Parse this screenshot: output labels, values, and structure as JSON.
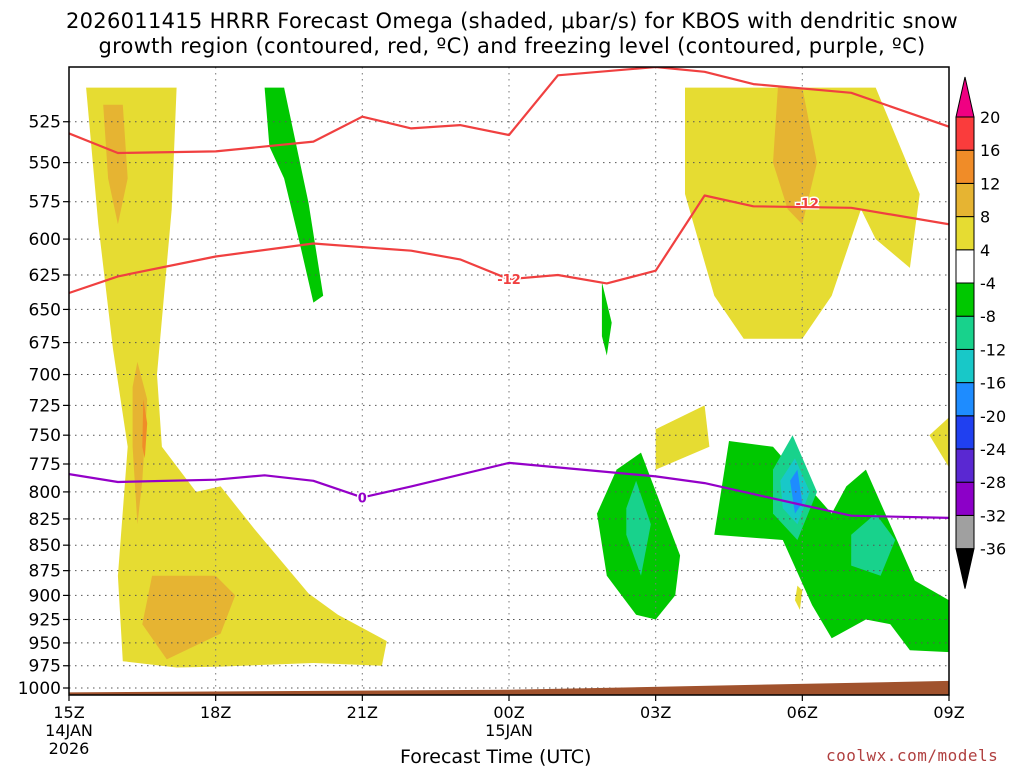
{
  "title_line1": "2026011415 HRRR Forecast Omega (shaded, μbar/s) for KBOS with dendritic snow",
  "title_line2": "growth region (contoured, red, ºC) and freezing level (contoured, purple, ºC)",
  "xaxis_label": "Forecast Time (UTC)",
  "credit": "coolwx.com/models",
  "chart_data": {
    "type": "time-height cross section",
    "model": "HRRR",
    "station": "KBOS",
    "init": "2026011415",
    "y_levels_mb": [
      525,
      550,
      575,
      600,
      625,
      650,
      675,
      700,
      725,
      750,
      775,
      800,
      825,
      850,
      875,
      900,
      925,
      950,
      975,
      1000
    ],
    "x_ticks": [
      {
        "h": 0,
        "label": "15Z",
        "sub1": "14JAN",
        "sub2": "2026"
      },
      {
        "h": 3,
        "label": "18Z",
        "sub1": "",
        "sub2": ""
      },
      {
        "h": 6,
        "label": "21Z",
        "sub1": "",
        "sub2": ""
      },
      {
        "h": 9,
        "label": "00Z",
        "sub1": "15JAN",
        "sub2": ""
      },
      {
        "h": 12,
        "label": "03Z",
        "sub1": "",
        "sub2": ""
      },
      {
        "h": 15,
        "label": "06Z",
        "sub1": "",
        "sub2": ""
      },
      {
        "h": 18,
        "label": "09Z",
        "sub1": "",
        "sub2": ""
      }
    ],
    "x_range_hours": [
      0,
      18
    ],
    "colorbar": {
      "colors": [
        "#000000",
        "#a0a0a0",
        "#8c00c8",
        "#5a28d2",
        "#2040f0",
        "#1e8cff",
        "#18c8c8",
        "#18d28c",
        "#00c800",
        "#ffffff",
        "#e6dc32",
        "#e6b432",
        "#f08c28",
        "#fa3c3c",
        "#f00082"
      ],
      "labels": [
        "-36",
        "-32",
        "-28",
        "-24",
        "-20",
        "-16",
        "-12",
        "-8",
        "-4",
        "4",
        "8",
        "12",
        "16",
        "20"
      ]
    },
    "contours": [
      {
        "name": "-12C upper",
        "color": "#f04040",
        "label": "-12",
        "label_at": {
          "h": 15.1,
          "p": 576
        },
        "points": [
          [
            0,
            532
          ],
          [
            1,
            544
          ],
          [
            3,
            543
          ],
          [
            5,
            537
          ],
          [
            6,
            522
          ],
          [
            7,
            529
          ],
          [
            8,
            527
          ],
          [
            9,
            533
          ],
          [
            10,
            498
          ],
          [
            12,
            490
          ],
          [
            13,
            496
          ],
          [
            14,
            503
          ],
          [
            16,
            508
          ],
          [
            18,
            528
          ]
        ]
      },
      {
        "name": "-12C lower",
        "color": "#f04040",
        "label": "-12",
        "label_at": {
          "h": 9.0,
          "p": 628
        },
        "points": [
          [
            0,
            638
          ],
          [
            1,
            626
          ],
          [
            3,
            612
          ],
          [
            5,
            603
          ],
          [
            7,
            608
          ],
          [
            8,
            614
          ],
          [
            9,
            628
          ],
          [
            10,
            625
          ],
          [
            11,
            631
          ],
          [
            12,
            622
          ],
          [
            13,
            571
          ],
          [
            14,
            578
          ],
          [
            16,
            579
          ],
          [
            18,
            590
          ]
        ]
      },
      {
        "name": "0C freezing level",
        "color": "#9400c8",
        "label": "0",
        "label_at": {
          "h": 6.0,
          "p": 805
        },
        "points": [
          [
            0,
            784
          ],
          [
            1,
            791
          ],
          [
            3,
            789
          ],
          [
            4,
            785
          ],
          [
            5,
            790
          ],
          [
            6,
            805
          ],
          [
            7,
            795
          ],
          [
            9,
            774
          ],
          [
            12,
            786
          ],
          [
            13,
            792
          ],
          [
            15,
            812
          ],
          [
            16,
            822
          ],
          [
            18,
            824
          ]
        ]
      }
    ],
    "omega_regions": [
      {
        "value": 4,
        "color": "#e6dc32",
        "points": [
          [
            0.35,
            505
          ],
          [
            2.2,
            505
          ],
          [
            2.1,
            580
          ],
          [
            1.8,
            700
          ],
          [
            1.9,
            760
          ],
          [
            2.6,
            800
          ],
          [
            3.1,
            795
          ],
          [
            3.8,
            835
          ],
          [
            4.9,
            898
          ],
          [
            5.5,
            920
          ],
          [
            6.5,
            948
          ],
          [
            6.4,
            975
          ],
          [
            5.0,
            972
          ],
          [
            3.1,
            976
          ],
          [
            2.2,
            977
          ],
          [
            1.1,
            970
          ],
          [
            1.0,
            880
          ],
          [
            1.2,
            760
          ],
          [
            0.9,
            680
          ],
          [
            0.6,
            590
          ]
        ]
      },
      {
        "value": 8,
        "color": "#e6b432",
        "points": [
          [
            0.7,
            515
          ],
          [
            1.1,
            515
          ],
          [
            1.2,
            560
          ],
          [
            1.0,
            590
          ],
          [
            0.8,
            560
          ]
        ]
      },
      {
        "value": 8,
        "color": "#e6b432",
        "points": [
          [
            1.4,
            690
          ],
          [
            1.6,
            720
          ],
          [
            1.5,
            790
          ],
          [
            1.4,
            830
          ],
          [
            1.3,
            760
          ],
          [
            1.3,
            710
          ]
        ]
      },
      {
        "value": 8,
        "color": "#e6b432",
        "points": [
          [
            1.7,
            880
          ],
          [
            3.0,
            880
          ],
          [
            3.4,
            900
          ],
          [
            3.1,
            940
          ],
          [
            2.0,
            968
          ],
          [
            1.5,
            930
          ]
        ]
      },
      {
        "value": 12,
        "color": "#f08c28",
        "points": [
          [
            1.52,
            720
          ],
          [
            1.6,
            740
          ],
          [
            1.55,
            770
          ],
          [
            1.5,
            760
          ]
        ]
      },
      {
        "value": 4,
        "color": "#e6dc32",
        "points": [
          [
            12.6,
            505
          ],
          [
            16.5,
            505
          ],
          [
            17.4,
            570
          ],
          [
            17.2,
            620
          ],
          [
            16.5,
            600
          ],
          [
            16.2,
            580
          ],
          [
            15.6,
            640
          ],
          [
            15.0,
            672
          ],
          [
            13.8,
            672
          ],
          [
            13.2,
            640
          ],
          [
            12.6,
            570
          ]
        ]
      },
      {
        "value": 8,
        "color": "#e6b432",
        "points": [
          [
            14.5,
            505
          ],
          [
            15.0,
            505
          ],
          [
            15.3,
            550
          ],
          [
            15.0,
            590
          ],
          [
            14.7,
            580
          ],
          [
            14.4,
            550
          ]
        ]
      },
      {
        "value": 4,
        "color": "#e6dc32",
        "points": [
          [
            12.0,
            745
          ],
          [
            13.0,
            725
          ],
          [
            13.1,
            760
          ],
          [
            12.0,
            780
          ]
        ]
      },
      {
        "value": 4,
        "color": "#e6dc32",
        "points": [
          [
            17.6,
            750
          ],
          [
            18.0,
            735
          ],
          [
            18.0,
            778
          ]
        ]
      },
      {
        "value": 4,
        "color": "#e6dc32",
        "points": [
          [
            14.9,
            890
          ],
          [
            15.0,
            895
          ],
          [
            14.95,
            915
          ],
          [
            14.85,
            905
          ]
        ]
      },
      {
        "value": -4,
        "color": "#00c800",
        "points": [
          [
            4.0,
            505
          ],
          [
            4.4,
            505
          ],
          [
            4.9,
            576
          ],
          [
            5.2,
            640
          ],
          [
            5.0,
            645
          ],
          [
            4.7,
            600
          ],
          [
            4.4,
            560
          ],
          [
            4.1,
            540
          ]
        ]
      },
      {
        "value": -4,
        "color": "#00c800",
        "points": [
          [
            10.9,
            630
          ],
          [
            11.1,
            660
          ],
          [
            11.0,
            685
          ],
          [
            10.9,
            670
          ]
        ]
      },
      {
        "value": -4,
        "color": "#00c800",
        "points": [
          [
            10.8,
            820
          ],
          [
            11.2,
            780
          ],
          [
            11.7,
            765
          ],
          [
            12.5,
            860
          ],
          [
            12.4,
            900
          ],
          [
            12.0,
            925
          ],
          [
            11.6,
            920
          ],
          [
            11.0,
            880
          ]
        ]
      },
      {
        "value": -4,
        "color": "#00c800",
        "points": [
          [
            13.2,
            840
          ],
          [
            13.5,
            755
          ],
          [
            14.4,
            760
          ],
          [
            15.6,
            820
          ],
          [
            15.9,
            795
          ],
          [
            16.3,
            780
          ],
          [
            17.3,
            885
          ],
          [
            18.0,
            905
          ],
          [
            18.0,
            960
          ],
          [
            17.2,
            958
          ],
          [
            16.8,
            930
          ],
          [
            16.3,
            925
          ],
          [
            15.6,
            945
          ],
          [
            15.2,
            910
          ],
          [
            14.6,
            845
          ]
        ]
      },
      {
        "value": -8,
        "color": "#18d28c",
        "points": [
          [
            11.4,
            815
          ],
          [
            11.6,
            790
          ],
          [
            11.9,
            830
          ],
          [
            11.7,
            880
          ],
          [
            11.4,
            840
          ]
        ]
      },
      {
        "value": -8,
        "color": "#18d28c",
        "points": [
          [
            14.4,
            780
          ],
          [
            14.8,
            750
          ],
          [
            15.3,
            800
          ],
          [
            14.9,
            845
          ],
          [
            14.4,
            820
          ]
        ]
      },
      {
        "value": -8,
        "color": "#18d28c",
        "points": [
          [
            16.0,
            840
          ],
          [
            16.5,
            820
          ],
          [
            16.9,
            845
          ],
          [
            16.6,
            880
          ],
          [
            16.0,
            870
          ]
        ]
      },
      {
        "value": -12,
        "color": "#18c8c8",
        "points": [
          [
            14.55,
            790
          ],
          [
            14.85,
            770
          ],
          [
            15.15,
            800
          ],
          [
            14.9,
            830
          ],
          [
            14.6,
            815
          ]
        ]
      },
      {
        "value": -16,
        "color": "#1e8cff",
        "points": [
          [
            14.75,
            790
          ],
          [
            14.9,
            780
          ],
          [
            15.0,
            810
          ],
          [
            14.85,
            820
          ]
        ]
      }
    ],
    "terrain": {
      "color": "#a0522d",
      "points": [
        [
          0,
          1005
        ],
        [
          9,
          1002
        ],
        [
          18,
          992
        ]
      ]
    }
  }
}
